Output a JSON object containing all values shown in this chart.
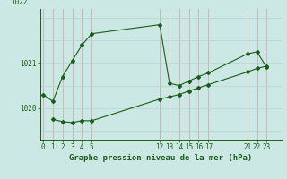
{
  "title": "Graphe pression niveau de la mer (hPa)",
  "bg_color": "#cce8e4",
  "plot_bg_color": "#cce8e4",
  "line_color": "#1a5c1a",
  "grid_color_v": "#d4a0a0",
  "grid_color_h": "#b8d8d4",
  "line1_x": [
    0,
    1,
    2,
    3,
    4,
    5,
    12,
    13,
    14,
    15,
    16,
    17,
    21,
    22,
    23
  ],
  "line1_y": [
    1020.3,
    1020.15,
    1020.7,
    1021.05,
    1021.4,
    1021.65,
    1021.85,
    1020.55,
    1020.5,
    1020.6,
    1020.7,
    1020.78,
    1021.2,
    1021.25,
    1020.9
  ],
  "line2_x": [
    1,
    2,
    3,
    4,
    5,
    12,
    13,
    14,
    15,
    16,
    17,
    21,
    22,
    23
  ],
  "line2_y": [
    1019.75,
    1019.7,
    1019.68,
    1019.72,
    1019.72,
    1020.2,
    1020.25,
    1020.3,
    1020.38,
    1020.45,
    1020.52,
    1020.8,
    1020.88,
    1020.93
  ],
  "yticks": [
    1020,
    1021
  ],
  "ytop_label": "1022",
  "xtick_labels": [
    "0",
    "1",
    "2",
    "3",
    "4",
    "5",
    "12",
    "13",
    "14",
    "15",
    "16",
    "17",
    "21",
    "22",
    "23"
  ],
  "xtick_positions": [
    0,
    1,
    2,
    3,
    4,
    5,
    12,
    13,
    14,
    15,
    16,
    17,
    21,
    22,
    23
  ],
  "xlim": [
    -0.3,
    24.5
  ],
  "ylim": [
    1019.3,
    1022.2
  ],
  "title_fontsize": 6.5,
  "tick_fontsize": 5.5
}
